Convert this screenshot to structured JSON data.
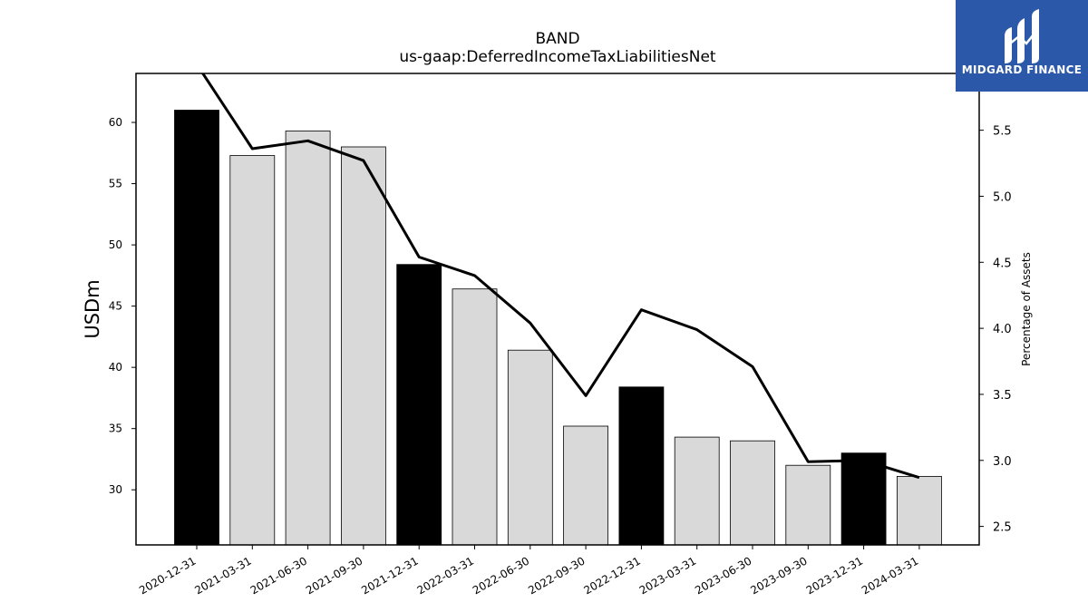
{
  "chart_data": {
    "type": "bar",
    "title": "BAND",
    "subtitle": "us-gaap:DeferredIncomeTaxLiabilitiesNet",
    "categories": [
      "2020-12-31",
      "2021-03-31",
      "2021-06-30",
      "2021-09-30",
      "2021-12-31",
      "2022-03-31",
      "2022-06-30",
      "2022-09-30",
      "2022-12-31",
      "2023-03-31",
      "2023-06-30",
      "2023-09-30",
      "2023-12-31",
      "2024-03-31"
    ],
    "series": [
      {
        "type": "bar",
        "axis": "left",
        "values": [
          61.0,
          57.3,
          59.3,
          58.0,
          48.4,
          46.4,
          41.4,
          35.2,
          38.4,
          34.3,
          34.0,
          32.0,
          33.0,
          31.1
        ],
        "colors": [
          "#000000",
          "#d9d9d9",
          "#d9d9d9",
          "#d9d9d9",
          "#000000",
          "#d9d9d9",
          "#d9d9d9",
          "#d9d9d9",
          "#000000",
          "#d9d9d9",
          "#d9d9d9",
          "#d9d9d9",
          "#000000",
          "#d9d9d9"
        ]
      },
      {
        "type": "line",
        "axis": "right",
        "color": "#000000",
        "values": [
          6.0,
          5.36,
          5.42,
          5.27,
          4.54,
          4.4,
          4.04,
          3.49,
          4.14,
          3.99,
          3.71,
          2.99,
          3.0,
          2.87
        ]
      }
    ],
    "ylabel": "USDm",
    "ylabel_right": "Percentage of Assets",
    "ylim": [
      25.5,
      64
    ],
    "ylim_right": [
      2.36,
      5.93
    ],
    "yticks": [
      30,
      35,
      40,
      45,
      50,
      55,
      60
    ],
    "yticks_right": [
      "2.5",
      "3.0",
      "3.5",
      "4.0",
      "4.5",
      "5.0",
      "5.5"
    ],
    "grid": false,
    "legend": "none"
  },
  "logo": {
    "text": "MIDGARD FINANCE",
    "background": "#2b58a8"
  }
}
